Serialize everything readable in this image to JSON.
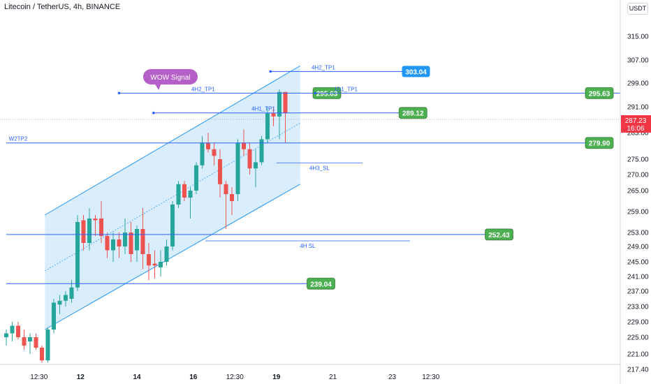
{
  "header": {
    "title": "Litecoin / TetherUS, 4h, BINANCE",
    "currency": "USDT"
  },
  "price_tag": {
    "price": "287.23",
    "countdown": "16:06"
  },
  "colors": {
    "up": "#26a69a",
    "down": "#ef5350",
    "level_line": "#2962ff",
    "label_green": "#4caf50",
    "label_blue": "#2196f3",
    "channel_fill": "#bbdefb",
    "signal_bubble": "#b55fc9",
    "price_tag": "#f23645"
  },
  "chart_data": {
    "type": "candlestick",
    "ylim": [
      217.4,
      320
    ],
    "xlim": [
      0,
      80
    ],
    "y_ticks": [
      {
        "v": 315,
        "label": "315.00"
      },
      {
        "v": 307,
        "label": "307.00"
      },
      {
        "v": 299,
        "label": "299.00"
      },
      {
        "v": 291,
        "label": "291.00"
      },
      {
        "v": 283,
        "label": "283.00"
      },
      {
        "v": 275,
        "label": "275.00"
      },
      {
        "v": 270,
        "label": "270.00"
      },
      {
        "v": 265,
        "label": "265.00"
      },
      {
        "v": 259,
        "label": "259.00"
      },
      {
        "v": 253,
        "label": "253.00"
      },
      {
        "v": 249,
        "label": "249.00"
      },
      {
        "v": 245,
        "label": "245.00"
      },
      {
        "v": 241,
        "label": "241.00"
      },
      {
        "v": 237,
        "label": "237.00"
      },
      {
        "v": 233,
        "label": "233.00"
      },
      {
        "v": 229,
        "label": "229.00"
      },
      {
        "v": 225,
        "label": "225.00"
      },
      {
        "v": 221,
        "label": "221.00"
      },
      {
        "v": 217.4,
        "label": "217.40"
      }
    ],
    "x_ticks": [
      {
        "x": 5.5,
        "label": "12:30",
        "bold": false
      },
      {
        "x": 12.5,
        "label": "12",
        "bold": true
      },
      {
        "x": 22,
        "label": "14",
        "bold": true
      },
      {
        "x": 31.5,
        "label": "16",
        "bold": true
      },
      {
        "x": 38.5,
        "label": "12:30",
        "bold": false
      },
      {
        "x": 45.5,
        "label": "19",
        "bold": true
      },
      {
        "x": 55,
        "label": "21",
        "bold": false
      },
      {
        "x": 65,
        "label": "23",
        "bold": false
      },
      {
        "x": 71.5,
        "label": "12:30",
        "bold": false
      }
    ],
    "candles": [
      {
        "x": 0,
        "o": 225,
        "h": 227,
        "l": 223,
        "c": 226
      },
      {
        "x": 1,
        "o": 226,
        "h": 229,
        "l": 224,
        "c": 228
      },
      {
        "x": 2,
        "o": 228,
        "h": 229,
        "l": 224.5,
        "c": 225
      },
      {
        "x": 3,
        "o": 225,
        "h": 227,
        "l": 222,
        "c": 223
      },
      {
        "x": 4,
        "o": 224,
        "h": 226,
        "l": 221,
        "c": 225
      },
      {
        "x": 5,
        "o": 225,
        "h": 226,
        "l": 222,
        "c": 222.5
      },
      {
        "x": 6,
        "o": 222.5,
        "h": 223,
        "l": 219,
        "c": 219.5
      },
      {
        "x": 7,
        "o": 219.5,
        "h": 227.5,
        "l": 219,
        "c": 227
      },
      {
        "x": 8,
        "o": 227,
        "h": 235,
        "l": 226,
        "c": 234
      },
      {
        "x": 9,
        "o": 233.5,
        "h": 236,
        "l": 231,
        "c": 234.5
      },
      {
        "x": 10,
        "o": 234.5,
        "h": 237,
        "l": 233,
        "c": 236
      },
      {
        "x": 11,
        "o": 235,
        "h": 240,
        "l": 234,
        "c": 238
      },
      {
        "x": 12,
        "o": 238,
        "h": 258,
        "l": 237,
        "c": 256
      },
      {
        "x": 13,
        "o": 256.5,
        "h": 258,
        "l": 248,
        "c": 250
      },
      {
        "x": 14,
        "o": 250,
        "h": 260,
        "l": 248,
        "c": 257
      },
      {
        "x": 15,
        "o": 257,
        "h": 258,
        "l": 252,
        "c": 256.5
      },
      {
        "x": 16,
        "o": 257,
        "h": 262,
        "l": 250,
        "c": 252
      },
      {
        "x": 17,
        "o": 252,
        "h": 253,
        "l": 246,
        "c": 248
      },
      {
        "x": 18,
        "o": 248,
        "h": 253,
        "l": 245,
        "c": 251
      },
      {
        "x": 19,
        "o": 251,
        "h": 253,
        "l": 246,
        "c": 249
      },
      {
        "x": 20,
        "o": 249,
        "h": 257,
        "l": 247,
        "c": 253
      },
      {
        "x": 21,
        "o": 253,
        "h": 256,
        "l": 245,
        "c": 247
      },
      {
        "x": 22,
        "o": 248,
        "h": 255,
        "l": 245,
        "c": 254
      },
      {
        "x": 23,
        "o": 254,
        "h": 260,
        "l": 243,
        "c": 247
      },
      {
        "x": 24,
        "o": 247,
        "h": 250,
        "l": 240,
        "c": 244
      },
      {
        "x": 25,
        "o": 244.5,
        "h": 248,
        "l": 240.5,
        "c": 244
      },
      {
        "x": 26,
        "o": 243.5,
        "h": 248,
        "l": 241,
        "c": 245
      },
      {
        "x": 27,
        "o": 245,
        "h": 251,
        "l": 244,
        "c": 249
      },
      {
        "x": 28,
        "o": 249,
        "h": 262,
        "l": 248,
        "c": 261
      },
      {
        "x": 29,
        "o": 261,
        "h": 268,
        "l": 260,
        "c": 267
      },
      {
        "x": 30,
        "o": 267,
        "h": 268,
        "l": 262,
        "c": 263
      },
      {
        "x": 31,
        "o": 263,
        "h": 266,
        "l": 257,
        "c": 265
      },
      {
        "x": 32,
        "o": 265,
        "h": 274,
        "l": 264,
        "c": 273
      },
      {
        "x": 33,
        "o": 273,
        "h": 282,
        "l": 272,
        "c": 280
      },
      {
        "x": 34,
        "o": 280,
        "h": 283,
        "l": 277,
        "c": 278
      },
      {
        "x": 35,
        "o": 278,
        "h": 280,
        "l": 273,
        "c": 276
      },
      {
        "x": 36,
        "o": 275,
        "h": 278,
        "l": 263,
        "c": 267
      },
      {
        "x": 37,
        "o": 267,
        "h": 268,
        "l": 254,
        "c": 264
      },
      {
        "x": 38,
        "o": 264,
        "h": 266,
        "l": 258,
        "c": 262
      },
      {
        "x": 39,
        "o": 264,
        "h": 281,
        "l": 262,
        "c": 280
      },
      {
        "x": 40,
        "o": 280,
        "h": 284,
        "l": 276,
        "c": 278
      },
      {
        "x": 41,
        "o": 278,
        "h": 280,
        "l": 270,
        "c": 272
      },
      {
        "x": 42,
        "o": 272,
        "h": 278,
        "l": 266,
        "c": 274
      },
      {
        "x": 43,
        "o": 274,
        "h": 282,
        "l": 273,
        "c": 281
      },
      {
        "x": 44,
        "o": 281,
        "h": 291,
        "l": 280,
        "c": 289
      },
      {
        "x": 45,
        "o": 289,
        "h": 291,
        "l": 285,
        "c": 288
      },
      {
        "x": 46,
        "o": 288,
        "h": 297,
        "l": 281,
        "c": 296
      },
      {
        "x": 47,
        "o": 296,
        "h": 296,
        "l": 280,
        "c": 289
      }
    ],
    "levels": [
      {
        "name": "303.04",
        "value": 303.04,
        "x1": 44.5,
        "x2": 67,
        "color": "blue",
        "line_label": "4H2_TP1"
      },
      {
        "name": "295.63",
        "value": 295.63,
        "x1": 19,
        "x2": 52,
        "color": "green",
        "line_label": "4H2_TP1"
      },
      {
        "name": "295.63",
        "value": 295.63,
        "x1": 52,
        "x2": 104,
        "color": "green",
        "line_label": "1D1_TP1"
      },
      {
        "name": "289.12",
        "value": 289.12,
        "x1": 24.8,
        "x2": 66.5,
        "color": "green",
        "line_label": "4H1_TP1"
      },
      {
        "name": "279.90",
        "value": 279.9,
        "x1": 0,
        "x2": 98,
        "color": "green",
        "line_label": "W2TP2"
      },
      {
        "name": "252.43",
        "value": 252.43,
        "x1": 0,
        "x2": 81,
        "color": "green",
        "line_label": ""
      },
      {
        "name": "239.04",
        "value": 239.04,
        "x1": 0,
        "x2": 51,
        "color": "green",
        "line_label": ""
      }
    ],
    "sl_lines": [
      {
        "label": "4H3_SL",
        "value": 273.8,
        "x1": 45.5,
        "x2": 60
      },
      {
        "label": "4H SL",
        "value": 250.6,
        "x1": 33.5,
        "x2": 68
      }
    ],
    "annotation": "WOW Signal"
  }
}
